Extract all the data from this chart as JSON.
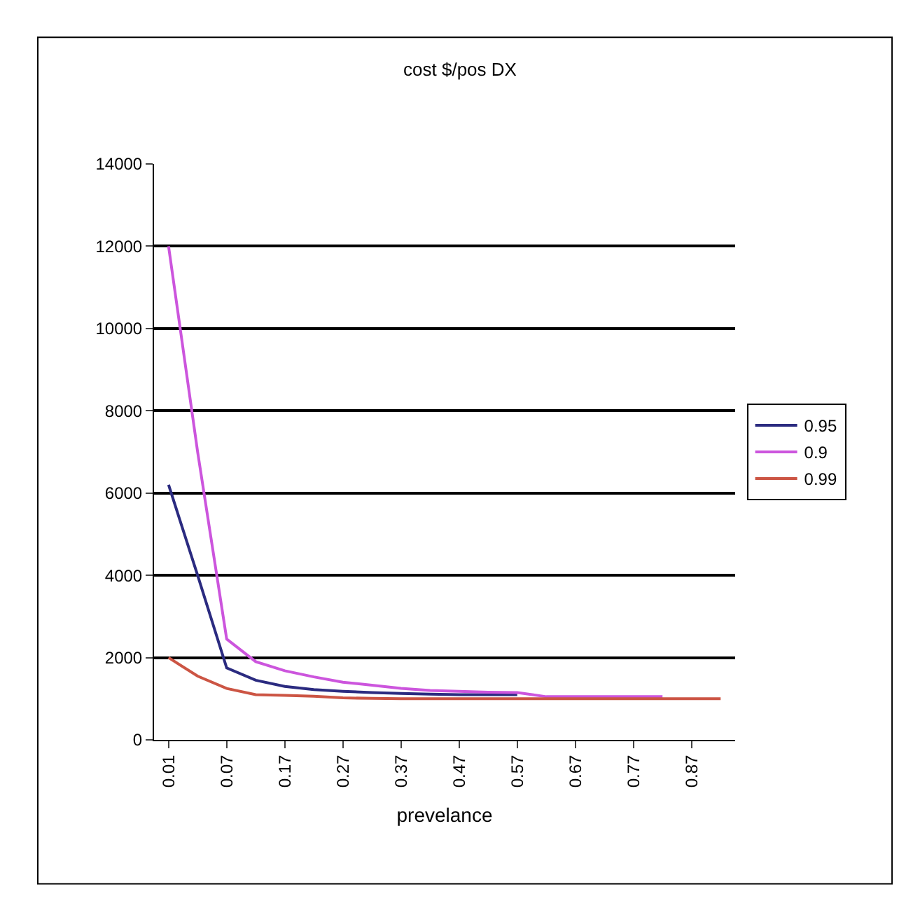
{
  "chart_data": {
    "type": "line",
    "title": "cost $/pos DX",
    "xlabel": "prevelance",
    "categories": [
      "0.01",
      null,
      "0.07",
      null,
      "0.17",
      null,
      "0.27",
      null,
      "0.37",
      null,
      "0.47",
      null,
      "0.57",
      null,
      "0.67",
      null,
      "0.77",
      null,
      "0.87",
      null
    ],
    "series": [
      {
        "name": "0.95",
        "color": "#2b2b80",
        "values": [
          6200,
          4000,
          1750,
          1450,
          1300,
          1220,
          1180,
          1150,
          1130,
          1110,
          1100,
          1100,
          1100,
          null,
          null,
          null,
          null,
          null,
          null,
          null
        ]
      },
      {
        "name": "0.9",
        "color": "#cc55dd",
        "values": [
          12000,
          7000,
          2450,
          1900,
          1680,
          1530,
          1400,
          1330,
          1250,
          1200,
          1180,
          1160,
          1150,
          1050,
          1050,
          1050,
          1050,
          1050,
          null,
          null
        ]
      },
      {
        "name": "0.99",
        "color": "#cc5544",
        "values": [
          2000,
          1550,
          1250,
          1100,
          1080,
          1060,
          1020,
          1010,
          1000,
          1000,
          1000,
          1000,
          1000,
          1000,
          1000,
          1000,
          1000,
          1000,
          1000,
          1000
        ]
      }
    ],
    "ylim": [
      0,
      14000
    ],
    "yticks": [
      0,
      2000,
      4000,
      6000,
      8000,
      10000,
      12000,
      14000
    ],
    "grid": "y",
    "legend": "right",
    "marker": "none",
    "line_style": "solid"
  }
}
